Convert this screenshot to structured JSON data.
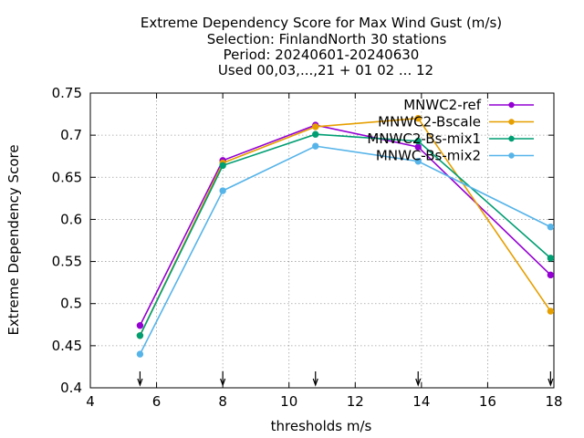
{
  "chart_data": {
    "type": "line",
    "title_lines": [
      "Extreme Dependency Score  for Max Wind Gust (m/s)",
      "Selection: FinlandNorth     30 stations",
      "Period: 20240601-20240630",
      "Used 00,03,...,21 + 01 02 ... 12"
    ],
    "xlabel": "thresholds m/s",
    "ylabel": "Extreme Dependency Score",
    "xlim": [
      4,
      18
    ],
    "ylim": [
      0.4,
      0.75
    ],
    "x_ticks": [
      "4",
      "6",
      "8",
      "10",
      "12",
      "14",
      "16",
      "18"
    ],
    "y_ticks": [
      "0.4",
      "0.45",
      "0.5",
      "0.55",
      "0.6",
      "0.65",
      "0.7",
      "0.75"
    ],
    "grid": true,
    "legend_position": "top-right",
    "x": [
      5.5,
      8.0,
      10.8,
      13.9,
      17.9
    ],
    "threshold_markers": [
      5.5,
      8.0,
      10.8,
      13.9,
      17.9
    ],
    "series": [
      {
        "name": "MNWC2-ref",
        "color": "#9400d3",
        "values": [
          0.474,
          0.67,
          0.712,
          0.686,
          0.534
        ]
      },
      {
        "name": "MNWC2-Bscale",
        "color": "#e69f00",
        "values": [
          0.462,
          0.667,
          0.71,
          0.72,
          0.491
        ]
      },
      {
        "name": "MNWC2-Bs-mix1",
        "color": "#009e73",
        "values": [
          0.462,
          0.664,
          0.701,
          0.693,
          0.554
        ]
      },
      {
        "name": "MNWC-Bs-mix2",
        "color": "#56b4e9",
        "values": [
          0.44,
          0.634,
          0.687,
          0.669,
          0.591
        ]
      }
    ]
  }
}
